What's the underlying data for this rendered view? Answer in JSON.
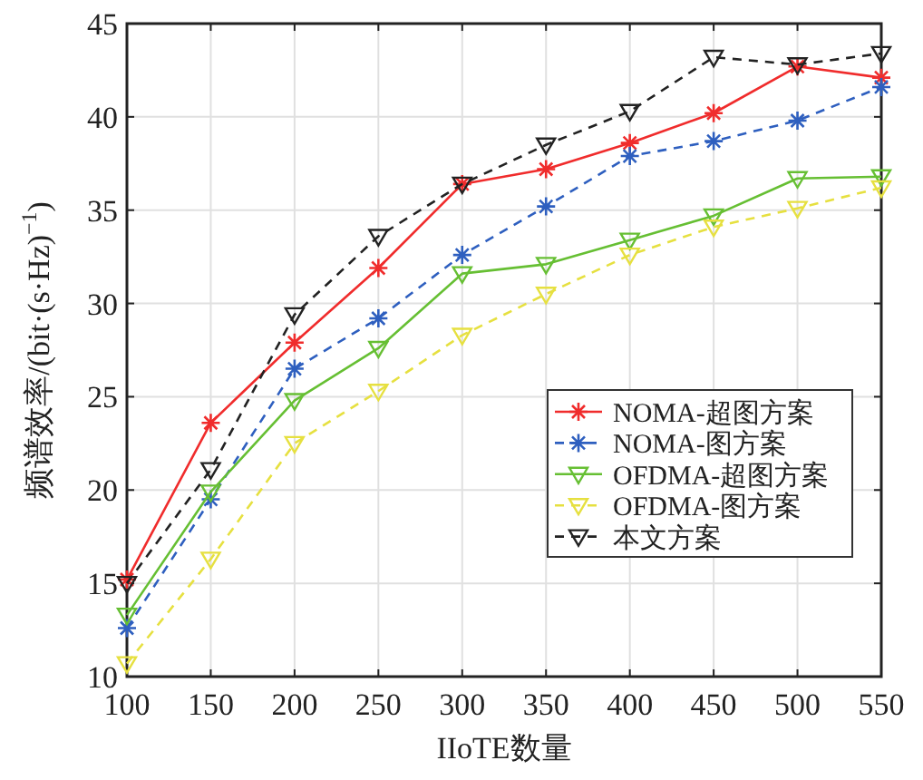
{
  "chart_data": {
    "type": "line",
    "xlabel": "IIoTE数量",
    "ylabel": "频谱效率/(bit·(s·Hz)$^{−1}$)",
    "x": [
      100,
      150,
      200,
      250,
      300,
      350,
      400,
      450,
      500,
      550
    ],
    "xlim": [
      100,
      550
    ],
    "xticks": [
      100,
      150,
      200,
      250,
      300,
      350,
      400,
      450,
      500,
      550
    ],
    "ylim": [
      10,
      45
    ],
    "yticks": [
      10,
      15,
      20,
      25,
      30,
      35,
      40,
      45
    ],
    "grid": true,
    "legend": "right",
    "series": [
      {
        "name": "NOMA-超图方案",
        "color": "#f02c2c",
        "marker": "cross",
        "line_style": "solid",
        "values": [
          15.2,
          23.6,
          27.9,
          31.9,
          36.4,
          37.2,
          38.6,
          40.2,
          42.7,
          42.1
        ]
      },
      {
        "name": "NOMA-图方案",
        "color": "#2e5fbf",
        "marker": "cross",
        "line_style": "dashed",
        "values": [
          12.6,
          19.5,
          26.5,
          29.2,
          32.6,
          35.2,
          37.9,
          38.7,
          39.8,
          41.6
        ]
      },
      {
        "name": "OFDMA-超图方案",
        "color": "#66bf33",
        "marker": "triangle",
        "line_style": "solid",
        "values": [
          13.3,
          19.9,
          24.8,
          27.6,
          31.6,
          32.1,
          33.4,
          34.7,
          36.7,
          36.8
        ]
      },
      {
        "name": "OFDMA-图方案",
        "color": "#e6e040",
        "marker": "triangle",
        "line_style": "dashed",
        "values": [
          10.7,
          16.3,
          22.5,
          25.3,
          28.3,
          30.5,
          32.6,
          34.1,
          35.1,
          36.2
        ]
      },
      {
        "name": "本文方案",
        "color": "#222222",
        "marker": "triangle",
        "line_style": "dashed",
        "values": [
          15.0,
          21.1,
          29.4,
          33.6,
          36.4,
          38.5,
          40.3,
          43.2,
          42.8,
          43.4
        ]
      }
    ]
  }
}
